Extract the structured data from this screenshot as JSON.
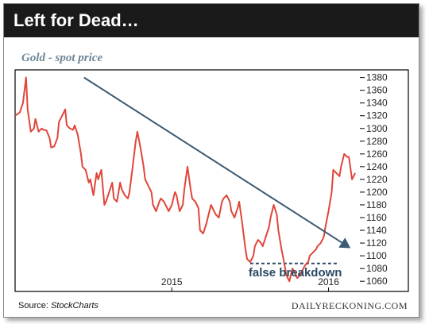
{
  "header": {
    "title": "Left for Dead…"
  },
  "colors": {
    "title_bar": "#1a1a1a",
    "title_text": "#ffffff",
    "price_line": "#e0463a",
    "trend_line": "#3b5a73",
    "subtitle": "#6e8597",
    "annotation": "#2b4a64",
    "frame": "#000000"
  },
  "footer": {
    "source_prefix": "Source: ",
    "source_name": "StockCharts",
    "brand": "DAILYRECKONING.COM"
  },
  "chart_data": {
    "type": "line",
    "title": "",
    "subtitle": "Gold - spot price",
    "xlabel": "",
    "ylabel": "",
    "ylim": [
      1044,
      1392
    ],
    "y_ticks": [
      1060,
      1080,
      1100,
      1120,
      1140,
      1160,
      1180,
      1200,
      1220,
      1240,
      1260,
      1280,
      1300,
      1320,
      1340,
      1360,
      1380
    ],
    "xlim": [
      2014.0,
      2016.2
    ],
    "x_ticks": [
      {
        "value": 2015.0,
        "label": "2015"
      },
      {
        "value": 2016.0,
        "label": "2016"
      }
    ],
    "grid": false,
    "axis_side": "right",
    "series": [
      {
        "values_x": [
          2014.0,
          2014.03,
          2014.05,
          2014.07,
          2014.08,
          2014.1,
          2014.12,
          2014.13,
          2014.15,
          2014.17,
          2014.18,
          2014.2,
          2014.22,
          2014.23,
          2014.25,
          2014.27,
          2014.28,
          2014.3,
          2014.32,
          2014.33,
          2014.35,
          2014.37,
          2014.38,
          2014.4,
          2014.42,
          2014.43,
          2014.45,
          2014.47,
          2014.48,
          2014.5,
          2014.52,
          2014.53,
          2014.55,
          2014.57,
          2014.58,
          2014.6,
          2014.62,
          2014.63,
          2014.65,
          2014.67,
          2014.68,
          2014.7,
          2014.72,
          2014.73,
          2014.75,
          2014.77,
          2014.78,
          2014.8,
          2014.82,
          2014.83,
          2014.85,
          2014.87,
          2014.88,
          2014.9,
          2014.92,
          2014.93,
          2014.95,
          2014.97,
          2014.98,
          2015.0,
          2015.02,
          2015.03,
          2015.05,
          2015.07,
          2015.08,
          2015.1,
          2015.12,
          2015.13,
          2015.15,
          2015.17,
          2015.18,
          2015.2,
          2015.22,
          2015.23,
          2015.25,
          2015.27,
          2015.28,
          2015.3,
          2015.32,
          2015.33,
          2015.35,
          2015.37,
          2015.38,
          2015.4,
          2015.42,
          2015.43,
          2015.45,
          2015.47,
          2015.48,
          2015.5,
          2015.52,
          2015.53,
          2015.55,
          2015.57,
          2015.58,
          2015.6,
          2015.62,
          2015.63,
          2015.65,
          2015.67,
          2015.68,
          2015.7,
          2015.72,
          2015.73,
          2015.75,
          2015.77,
          2015.78,
          2015.8,
          2015.82,
          2015.83,
          2015.85,
          2015.87,
          2015.88,
          2015.9,
          2015.92,
          2015.93,
          2015.95,
          2015.97,
          2015.98,
          2016.0,
          2016.02,
          2016.03,
          2016.05,
          2016.07,
          2016.08,
          2016.1,
          2016.12,
          2016.13,
          2016.15,
          2016.17
        ],
        "values": [
          1320,
          1325,
          1340,
          1380,
          1330,
          1295,
          1300,
          1315,
          1295,
          1300,
          1298,
          1297,
          1285,
          1270,
          1272,
          1285,
          1310,
          1320,
          1330,
          1305,
          1300,
          1298,
          1305,
          1290,
          1260,
          1240,
          1235,
          1215,
          1220,
          1195,
          1230,
          1220,
          1235,
          1180,
          1185,
          1200,
          1215,
          1190,
          1185,
          1215,
          1205,
          1195,
          1190,
          1200,
          1240,
          1280,
          1295,
          1270,
          1240,
          1220,
          1210,
          1200,
          1180,
          1170,
          1185,
          1190,
          1185,
          1175,
          1170,
          1180,
          1200,
          1195,
          1170,
          1180,
          1205,
          1240,
          1205,
          1190,
          1185,
          1175,
          1140,
          1135,
          1150,
          1160,
          1180,
          1170,
          1165,
          1160,
          1185,
          1190,
          1195,
          1185,
          1170,
          1160,
          1175,
          1185,
          1150,
          1110,
          1095,
          1090,
          1100,
          1115,
          1125,
          1120,
          1115,
          1130,
          1145,
          1160,
          1180,
          1165,
          1140,
          1110,
          1085,
          1070,
          1060,
          1080,
          1075,
          1065,
          1070,
          1075,
          1085,
          1090,
          1100,
          1105,
          1110,
          1115,
          1120,
          1130,
          1145,
          1170,
          1200,
          1235,
          1230,
          1225,
          1240,
          1260,
          1255,
          1255,
          1220,
          1230
        ]
      }
    ],
    "trend_line": {
      "x": [
        2014.44,
        2016.14
      ],
      "y": [
        1380,
        1112
      ]
    },
    "support_line": {
      "x": [
        2015.5,
        2016.06
      ],
      "y": [
        1088,
        1088
      ]
    },
    "annotations": [
      {
        "text": "false breakdown",
        "x": 2015.49,
        "y": 1074
      }
    ]
  }
}
